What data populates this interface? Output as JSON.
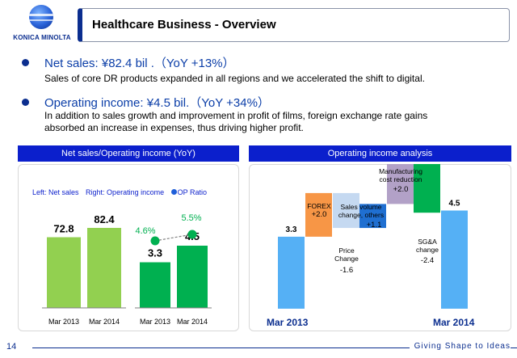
{
  "logo": {
    "text": "KONICA MINOLTA"
  },
  "title": "Healthcare Business - Overview",
  "points": [
    {
      "headline": "Net sales:  ¥82.4 bil .（YoY +13%）",
      "detail": [
        "Sales of core DR products expanded in all regions and we accelerated the shift to digital."
      ]
    },
    {
      "headline": "Operating income:  ¥4.5 bil.（YoY +34%）",
      "detail": [
        "In addition to sales growth and improvement in profit of films, foreign exchange rate gains",
        "absorbed an increase in expenses, thus driving higher profit."
      ]
    }
  ],
  "left_panel": {
    "header": "Net sales/Operating income (YoY)",
    "legend": {
      "net_sales": "Left: Net sales",
      "op_income": "Right: Operating income",
      "op_ratio": "OP Ratio"
    }
  },
  "right_panel": {
    "header": "Operating income analysis"
  },
  "footer": {
    "page": "14",
    "tagline": "Giving Shape to Ideas"
  },
  "colors": {
    "brand_blue": "#0b2e8f",
    "header_blue": "#0b1fcc",
    "light_green": "#92d050",
    "green": "#00b050",
    "sky_blue": "#55b0f5",
    "orange": "#f79646",
    "pale_blue": "#c5d9f1",
    "mid_blue": "#1f6fd1",
    "lavender": "#b2a1c7"
  },
  "chart_data": [
    {
      "type": "bar",
      "categories": [
        "Mar 2013",
        "Mar 2014"
      ],
      "series": [
        {
          "name": "Net sales",
          "values": [
            72.8,
            82.4
          ],
          "labels": [
            "72.8",
            "82.4"
          ]
        },
        {
          "name": "Operating income",
          "values": [
            3.3,
            4.5
          ],
          "labels": [
            "3.3",
            "4.5"
          ]
        }
      ],
      "line": {
        "name": "OP Ratio",
        "values": [
          4.6,
          5.5
        ],
        "labels": [
          "4.6%",
          "5.5%"
        ]
      }
    },
    {
      "type": "bar",
      "subtype": "waterfall",
      "start": {
        "label": "Mar 2013",
        "value": 3.3,
        "value_label": "3.3"
      },
      "steps": [
        {
          "name_lines": [
            "FOREX"
          ],
          "value": 2.0,
          "value_label": "+2.0"
        },
        {
          "name_lines": [
            "Price",
            "Change"
          ],
          "value": -1.6,
          "value_label": "-1.6"
        },
        {
          "name_lines": [
            "Sales volume",
            "change, others"
          ],
          "value": 1.1,
          "value_label": "+1.1"
        },
        {
          "name_lines": [
            "Manufacturing",
            "cost reduction"
          ],
          "value": 2.0,
          "value_label": "+2.0"
        },
        {
          "name_lines": [
            "SG&A",
            "change"
          ],
          "value": -2.4,
          "value_label": "-2.4"
        }
      ],
      "end": {
        "label": "Mar 2014",
        "value": 4.5,
        "value_label": "4.5"
      }
    }
  ]
}
